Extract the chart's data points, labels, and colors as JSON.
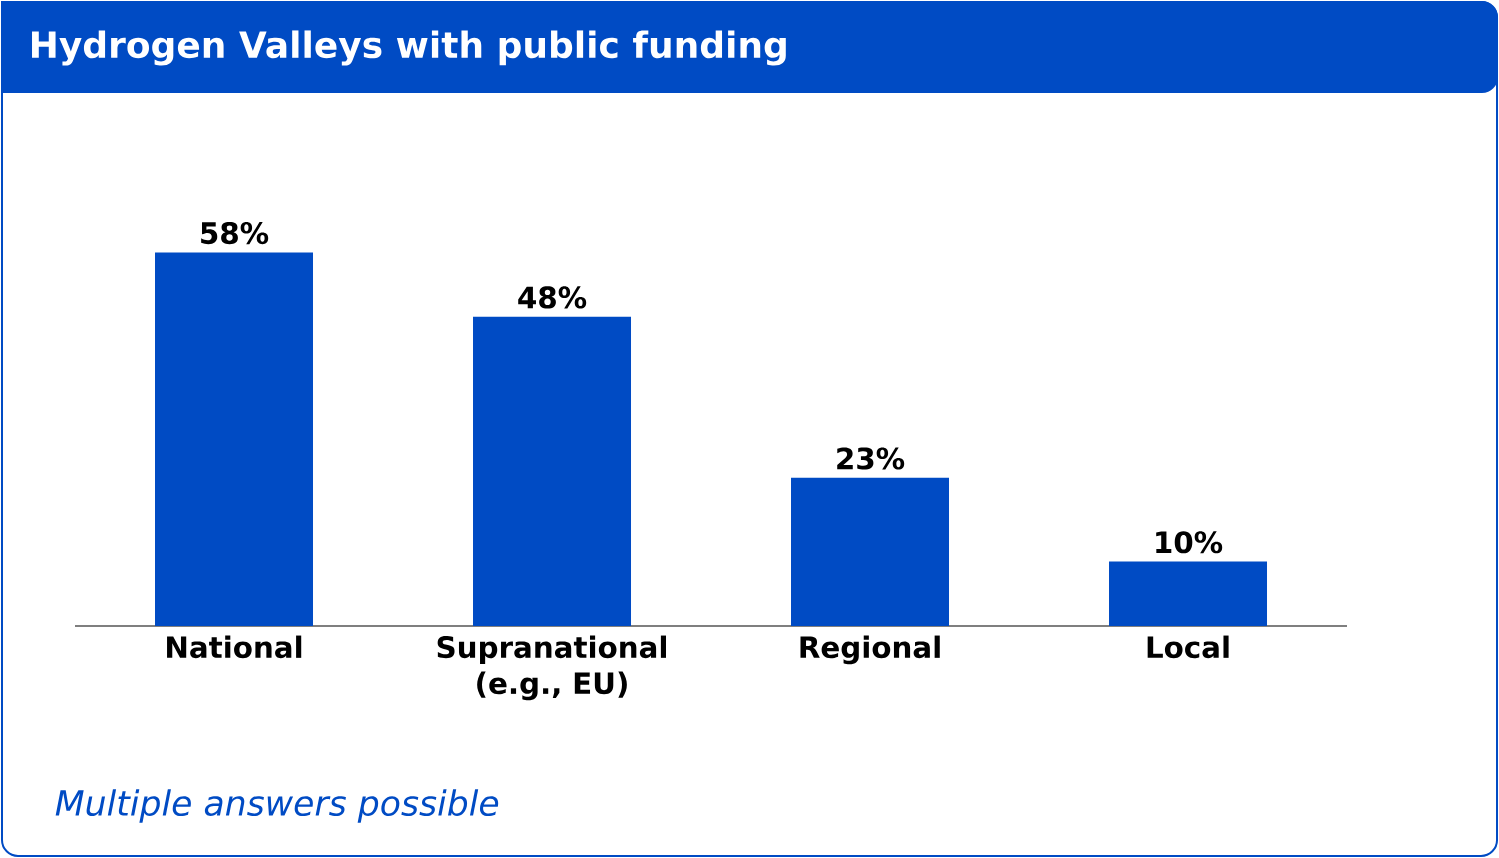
{
  "chart_data": {
    "type": "bar",
    "title": "Hydrogen Valleys with public funding",
    "categories": [
      "National",
      "Supranational (e.g., EU)",
      "Regional",
      "Local"
    ],
    "values": [
      58,
      48,
      23,
      10
    ],
    "value_labels": [
      "58%",
      "48%",
      "23%",
      "10%"
    ],
    "color": "#004bc4",
    "annotations": [
      "Multiple answers possible"
    ]
  }
}
